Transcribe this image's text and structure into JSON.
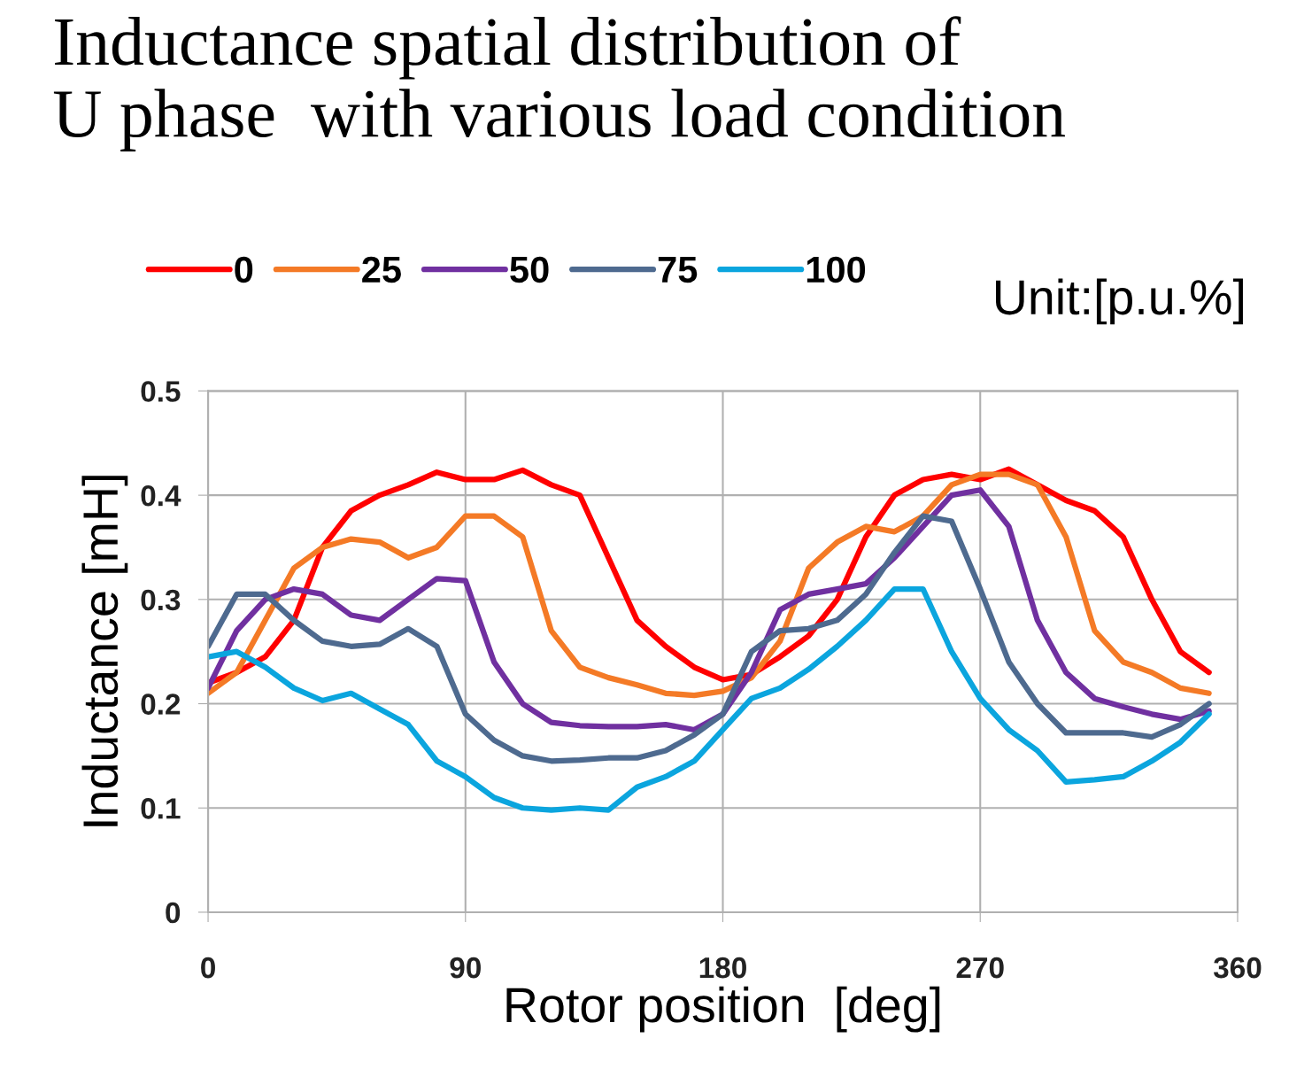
{
  "chart_data": {
    "type": "line",
    "title": "Inductance spatial distribution of\nU phase  with various load condition",
    "xlabel": "Rotor position  [deg]",
    "ylabel": "Inductance [mH]",
    "annotations": [
      "Unit:[p.u.%]"
    ],
    "x": [
      0,
      10,
      20,
      30,
      40,
      50,
      60,
      70,
      80,
      90,
      100,
      110,
      120,
      130,
      140,
      150,
      160,
      170,
      180,
      190,
      200,
      210,
      220,
      230,
      240,
      250,
      260,
      270,
      280,
      290,
      300,
      310,
      320,
      330,
      340,
      350
    ],
    "series": [
      {
        "name": "0",
        "color": "#ff0000",
        "values": [
          0.22,
          0.23,
          0.245,
          0.28,
          0.35,
          0.385,
          0.4,
          0.41,
          0.422,
          0.415,
          0.415,
          0.424,
          0.41,
          0.4,
          0.34,
          0.28,
          0.255,
          0.235,
          0.223,
          0.228,
          0.245,
          0.265,
          0.3,
          0.36,
          0.4,
          0.415,
          0.42,
          0.415,
          0.425,
          0.41,
          0.395,
          0.385,
          0.36,
          0.3,
          0.25,
          0.23
        ]
      },
      {
        "name": "25",
        "color": "#f47a26",
        "values": [
          0.21,
          0.23,
          0.28,
          0.33,
          0.35,
          0.358,
          0.355,
          0.34,
          0.35,
          0.38,
          0.38,
          0.36,
          0.27,
          0.235,
          0.225,
          0.218,
          0.21,
          0.208,
          0.212,
          0.225,
          0.26,
          0.33,
          0.355,
          0.37,
          0.365,
          0.38,
          0.41,
          0.42,
          0.42,
          0.41,
          0.36,
          0.27,
          0.24,
          0.23,
          0.215,
          0.21
        ]
      },
      {
        "name": "50",
        "color": "#7030a0",
        "values": [
          0.215,
          0.27,
          0.3,
          0.31,
          0.305,
          0.285,
          0.28,
          0.3,
          0.32,
          0.318,
          0.24,
          0.2,
          0.182,
          0.179,
          0.178,
          0.178,
          0.18,
          0.175,
          0.19,
          0.23,
          0.29,
          0.305,
          0.31,
          0.315,
          0.34,
          0.37,
          0.4,
          0.405,
          0.37,
          0.28,
          0.23,
          0.205,
          0.197,
          0.19,
          0.185,
          0.193
        ]
      },
      {
        "name": "75",
        "color": "#4e6a8f",
        "values": [
          0.255,
          0.305,
          0.305,
          0.28,
          0.26,
          0.255,
          0.257,
          0.272,
          0.255,
          0.19,
          0.165,
          0.15,
          0.145,
          0.146,
          0.148,
          0.148,
          0.155,
          0.17,
          0.19,
          0.25,
          0.27,
          0.272,
          0.28,
          0.305,
          0.345,
          0.38,
          0.375,
          0.31,
          0.24,
          0.2,
          0.172,
          0.172,
          0.172,
          0.168,
          0.18,
          0.2
        ]
      },
      {
        "name": "100",
        "color": "#0ba5de",
        "values": [
          0.245,
          0.25,
          0.235,
          0.215,
          0.203,
          0.21,
          0.195,
          0.18,
          0.145,
          0.13,
          0.11,
          0.1,
          0.098,
          0.1,
          0.098,
          0.12,
          0.13,
          0.145,
          0.175,
          0.205,
          0.215,
          0.233,
          0.255,
          0.28,
          0.31,
          0.31,
          0.25,
          0.205,
          0.175,
          0.155,
          0.125,
          0.127,
          0.13,
          0.145,
          0.163,
          0.19
        ]
      }
    ],
    "xlim": [
      0,
      360
    ],
    "xticks": [
      0,
      90,
      180,
      270,
      360
    ],
    "ylim": [
      0,
      0.5
    ],
    "yticks": [
      0,
      0.1,
      0.2,
      0.3,
      0.4,
      0.5
    ],
    "grid": true,
    "legend": "top",
    "line_style": "solid",
    "marker": "none"
  }
}
